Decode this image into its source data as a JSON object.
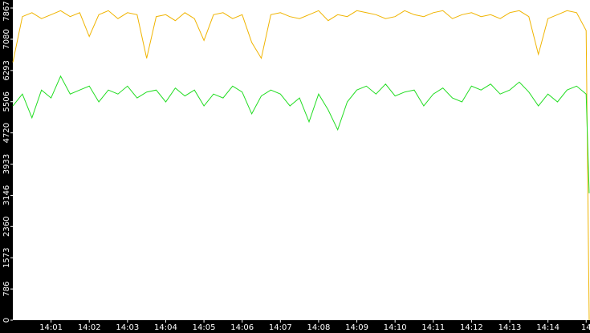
{
  "chart_data": {
    "type": "line",
    "x": [
      840,
      840.25,
      840.5,
      840.75,
      841,
      841.25,
      841.5,
      841.75,
      842,
      842.25,
      842.5,
      842.75,
      843,
      843.25,
      843.5,
      843.75,
      844,
      844.25,
      844.5,
      844.75,
      845,
      845.25,
      845.5,
      845.75,
      846,
      846.25,
      846.5,
      846.75,
      847,
      847.25,
      847.5,
      847.75,
      848,
      848.25,
      848.5,
      848.75,
      849,
      849.25,
      849.5,
      849.75,
      850,
      850.25,
      850.5,
      850.75,
      851,
      851.25,
      851.5,
      851.75,
      852,
      852.25,
      852.5,
      852.75,
      853,
      853.25,
      853.5,
      853.75,
      854,
      854.25,
      854.5,
      854.75,
      855,
      855.08
    ],
    "series": [
      {
        "color": "#f0b400",
        "values": [
          6500,
          7650,
          7750,
          7600,
          7700,
          7800,
          7650,
          7750,
          7150,
          7700,
          7800,
          7600,
          7750,
          7700,
          6600,
          7650,
          7700,
          7550,
          7750,
          7600,
          7050,
          7700,
          7750,
          7600,
          7700,
          7000,
          6600,
          7700,
          7750,
          7650,
          7600,
          7700,
          7800,
          7550,
          7700,
          7650,
          7800,
          7750,
          7700,
          7600,
          7650,
          7800,
          7700,
          7650,
          7750,
          7800,
          7600,
          7700,
          7750,
          7650,
          7700,
          7600,
          7750,
          7800,
          7650,
          6700,
          7600,
          7700,
          7800,
          7750,
          7300,
          0
        ]
      },
      {
        "color": "#22dd22",
        "values": [
          5400,
          5700,
          5100,
          5800,
          5600,
          6150,
          5700,
          5800,
          5900,
          5500,
          5800,
          5700,
          5900,
          5600,
          5750,
          5800,
          5500,
          5850,
          5650,
          5800,
          5400,
          5700,
          5600,
          5900,
          5750,
          5200,
          5650,
          5800,
          5700,
          5400,
          5600,
          5000,
          5700,
          5300,
          4800,
          5500,
          5800,
          5900,
          5700,
          5950,
          5650,
          5750,
          5800,
          5400,
          5700,
          5850,
          5600,
          5500,
          5900,
          5800,
          5950,
          5700,
          5800,
          6000,
          5750,
          5400,
          5700,
          5500,
          5800,
          5900,
          5700,
          3200
        ]
      }
    ],
    "xlim": [
      840,
      855.1
    ],
    "ylim": [
      0,
      7867
    ],
    "yticks": [
      0,
      786,
      1573,
      2360,
      3146,
      3933,
      4720,
      5506,
      6293,
      7080,
      7867
    ],
    "xticks": [
      {
        "value": 841,
        "label": "14:01"
      },
      {
        "value": 842,
        "label": "14:02"
      },
      {
        "value": 843,
        "label": "14:03"
      },
      {
        "value": 844,
        "label": "14:04"
      },
      {
        "value": 845,
        "label": "14:05"
      },
      {
        "value": 846,
        "label": "14:06"
      },
      {
        "value": 847,
        "label": "14:07"
      },
      {
        "value": 848,
        "label": "14:08"
      },
      {
        "value": 849,
        "label": "14:09"
      },
      {
        "value": 850,
        "label": "14:10"
      },
      {
        "value": 851,
        "label": "14:11"
      },
      {
        "value": 852,
        "label": "14:12"
      },
      {
        "value": 853,
        "label": "14:13"
      },
      {
        "value": 854,
        "label": "14:14"
      },
      {
        "value": 855,
        "label": "14"
      }
    ]
  }
}
